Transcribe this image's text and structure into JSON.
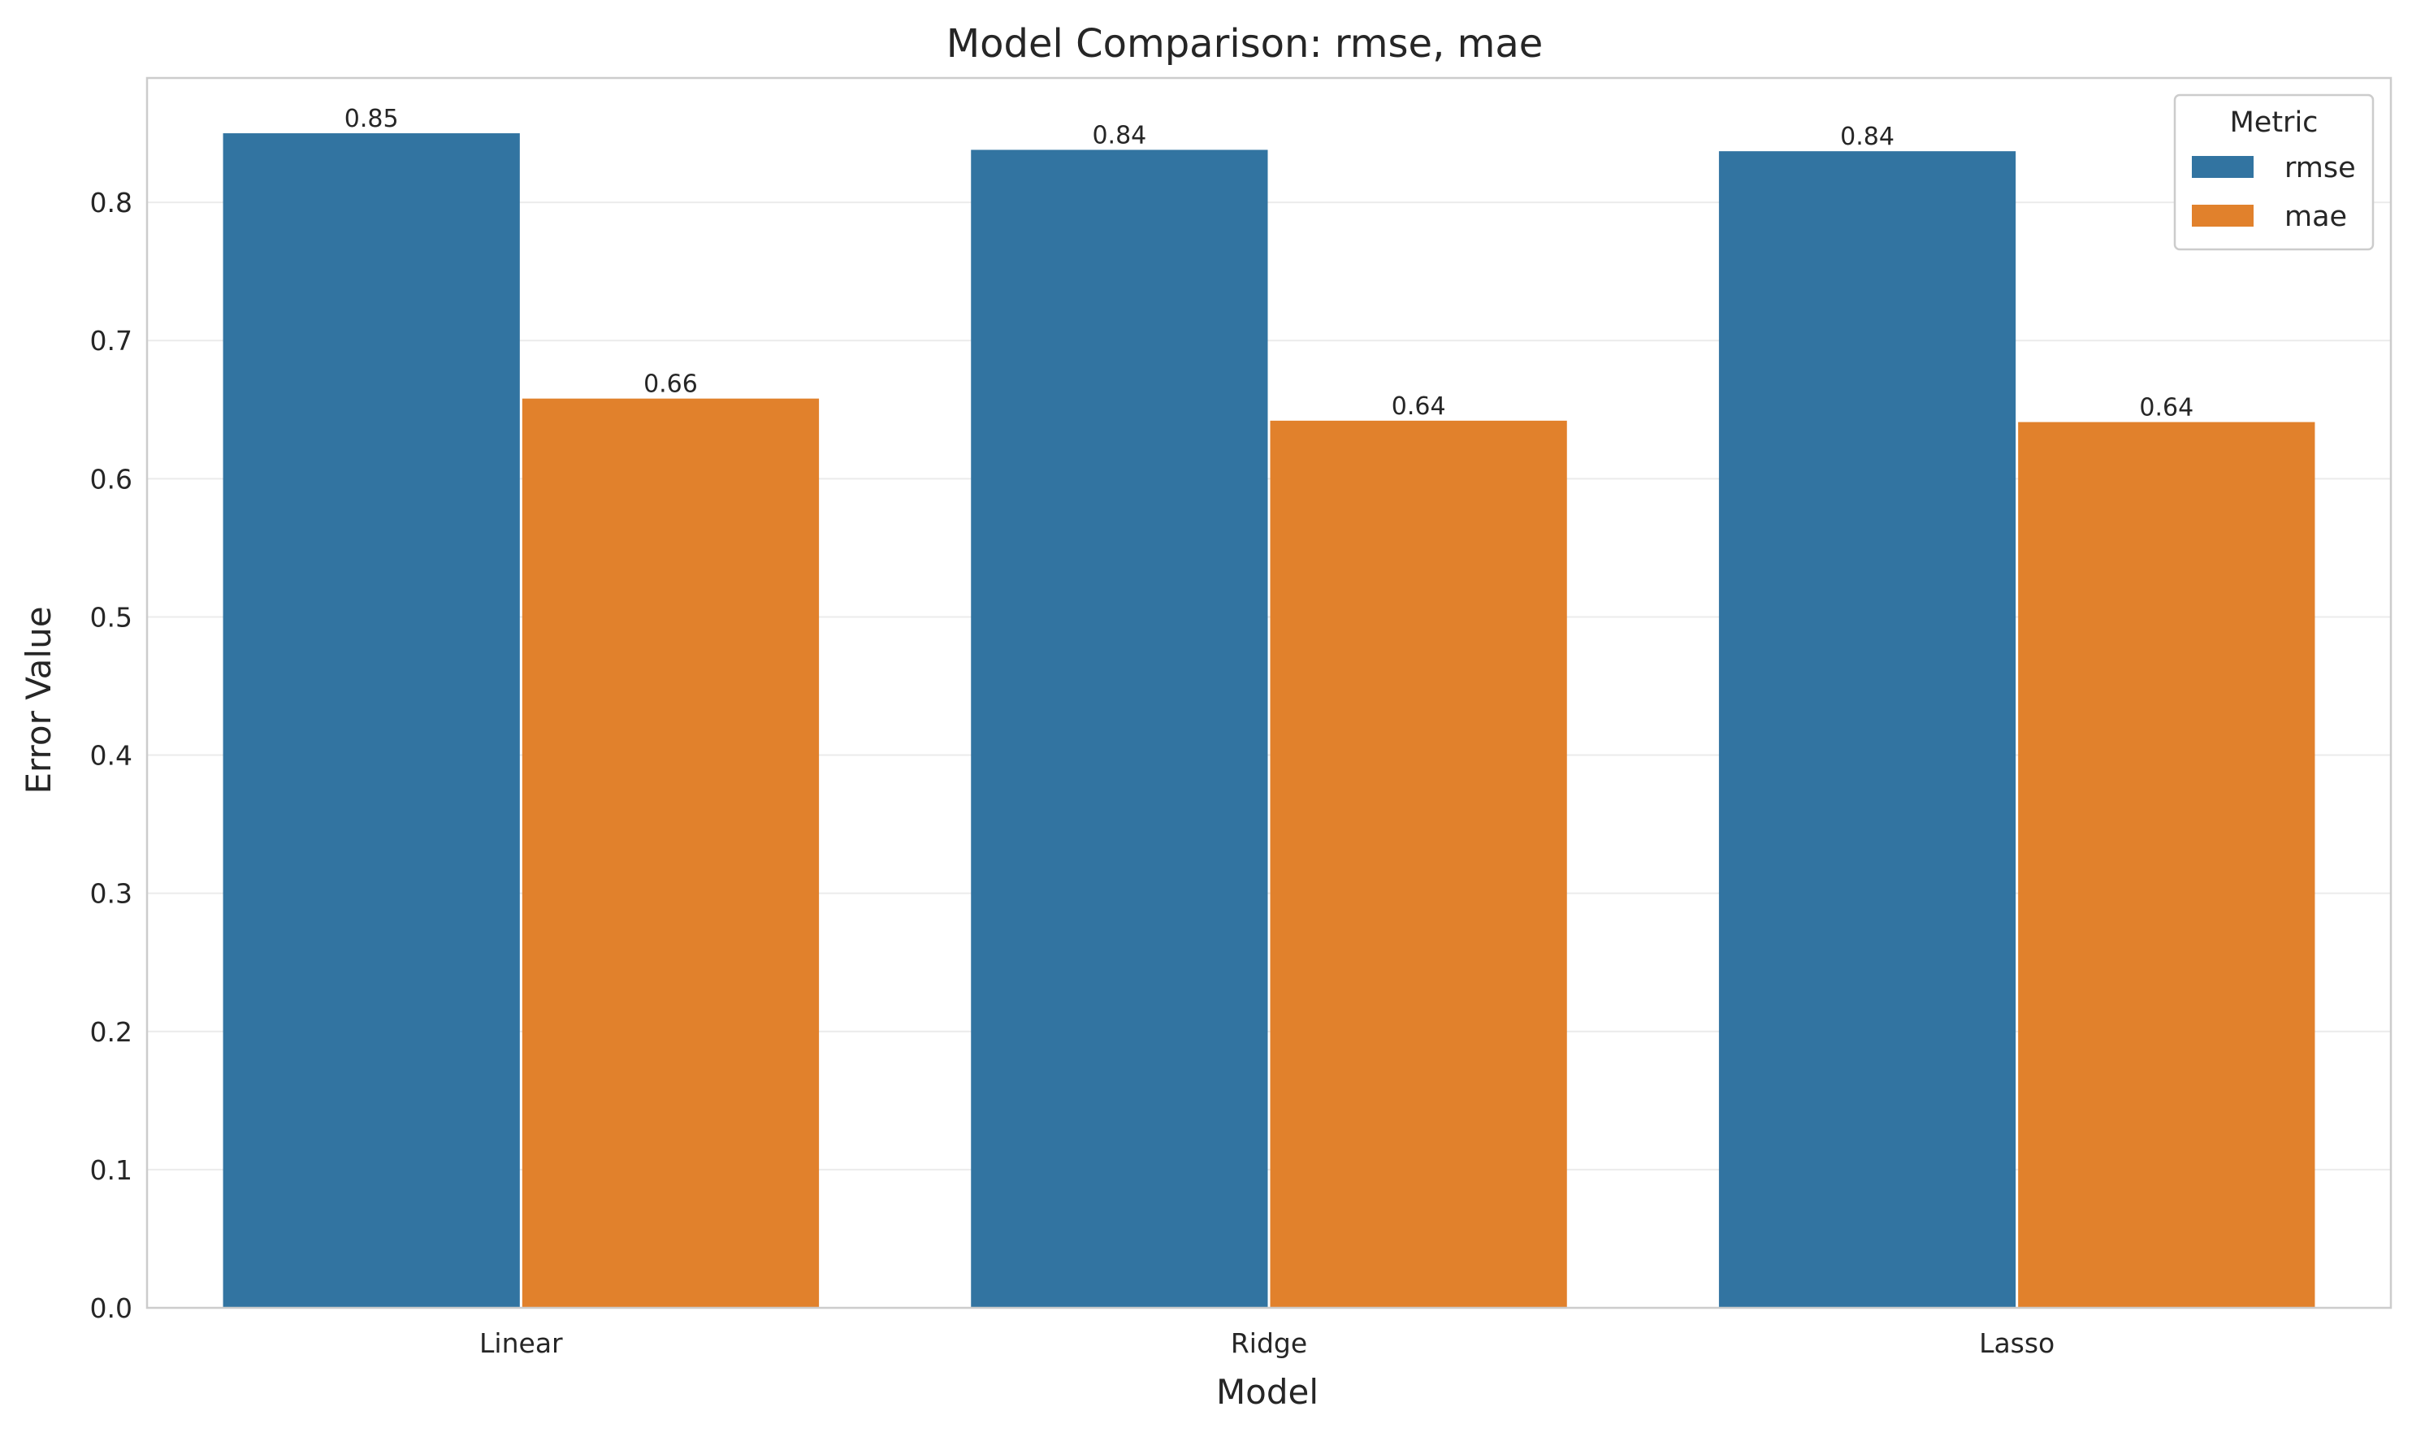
{
  "chart_data": {
    "type": "bar",
    "title": "Model Comparison: rmse, mae",
    "xlabel": "Model",
    "ylabel": "Error Value",
    "categories": [
      "Linear",
      "Ridge",
      "Lasso"
    ],
    "series": [
      {
        "name": "rmse",
        "values": [
          0.85,
          0.838,
          0.837
        ],
        "labels": [
          "0.85",
          "0.84",
          "0.84"
        ]
      },
      {
        "name": "mae",
        "values": [
          0.658,
          0.642,
          0.641
        ],
        "labels": [
          "0.66",
          "0.64",
          "0.64"
        ]
      }
    ],
    "ylim": [
      0,
      0.89
    ],
    "yticks": [
      0.0,
      0.1,
      0.2,
      0.3,
      0.4,
      0.5,
      0.6,
      0.7,
      0.8
    ],
    "ytick_labels": [
      "0.0",
      "0.1",
      "0.2",
      "0.3",
      "0.4",
      "0.5",
      "0.6",
      "0.7",
      "0.8"
    ],
    "grid": "y",
    "legend": {
      "title": "Metric",
      "placement": "top-right"
    },
    "colors": {
      "rmse": "#3274a1",
      "mae": "#e1812c",
      "grid": "#ebebeb",
      "axes": "#cccccc"
    }
  }
}
